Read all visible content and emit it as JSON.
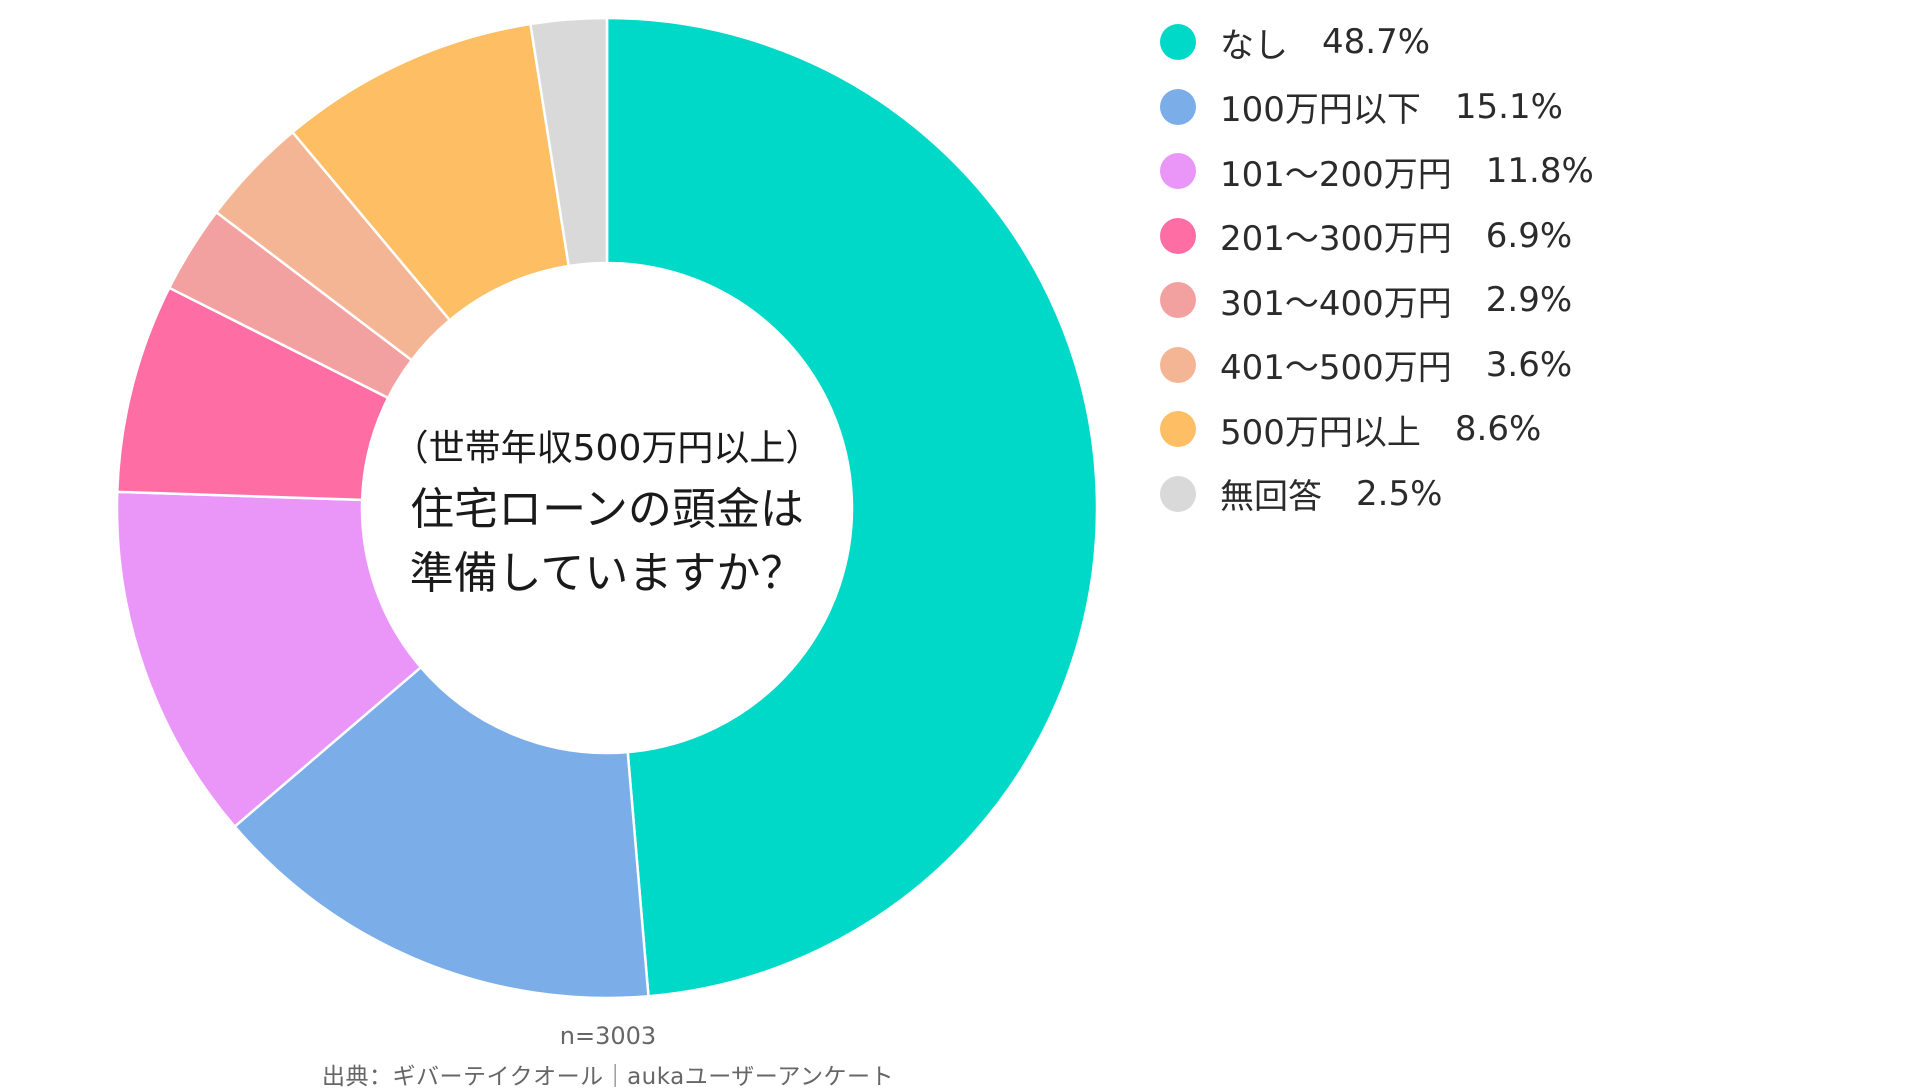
{
  "chart_data": {
    "type": "pie",
    "donut": true,
    "center_label": [
      "（世帯年収500万円以上）",
      "住宅ローンの頭金は",
      "準備していますか？"
    ],
    "slices": [
      {
        "label": "なし",
        "value": 48.7,
        "value_label": "48.7%",
        "color": "#00D8C8"
      },
      {
        "label": "100万円以下",
        "value": 15.1,
        "value_label": "15.1%",
        "color": "#7BAEE8"
      },
      {
        "label": "101〜200万円",
        "value": 11.8,
        "value_label": "11.8%",
        "color": "#EA95F8"
      },
      {
        "label": "201〜300万円",
        "value": 6.9,
        "value_label": "6.9%",
        "color": "#FF6DA5"
      },
      {
        "label": "301〜400万円",
        "value": 2.9,
        "value_label": "2.9%",
        "color": "#F2A0A0"
      },
      {
        "label": "401〜500万円",
        "value": 3.6,
        "value_label": "3.6%",
        "color": "#F4B594"
      },
      {
        "label": "500万円以上",
        "value": 8.6,
        "value_label": "8.6%",
        "color": "#FDBE64"
      },
      {
        "label": "無回答",
        "value": 2.5,
        "value_label": "2.5%",
        "color": "#D9D9D9"
      }
    ],
    "legend_position": "top-right",
    "sample_size": "n=3003",
    "source": "出典：ギバーテイクオール｜aukaユーザーアンケート"
  }
}
